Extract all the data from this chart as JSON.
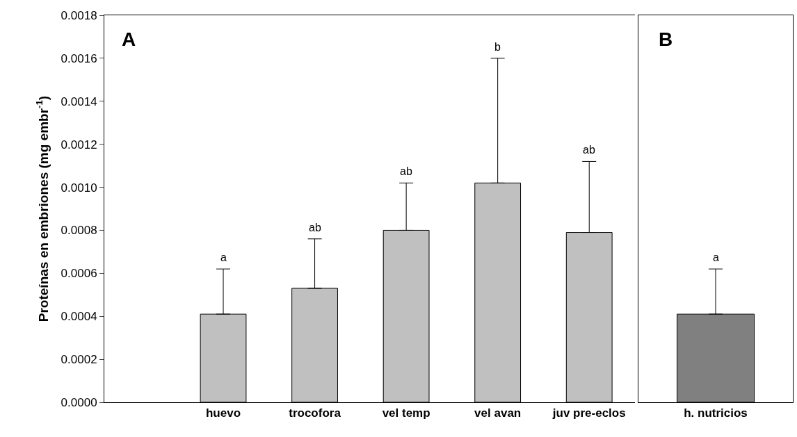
{
  "chart_data": [
    {
      "type": "bar",
      "ylabel": "Proteínas en embriones (mg embr$^{-1}$)",
      "categories": [
        "huevo",
        "trocofora",
        "vel temp",
        "vel avan",
        "juv pre-eclos"
      ],
      "values": [
        0.00041,
        0.00053,
        0.0008,
        0.00102,
        0.00079
      ],
      "color": "#c0c0c0",
      "errors": [
        [
          0.00041,
          0.00062
        ],
        [
          0.00053,
          0.00076
        ],
        [
          0.0008,
          0.00102
        ],
        [
          0.00102,
          0.0016
        ],
        [
          0.00079,
          0.00112
        ]
      ],
      "ylim": [
        0,
        0.0018
      ],
      "yticks": [
        {
          "value": 0,
          "label": "0.0000"
        },
        {
          "value": 0.0002,
          "label": "0.0002"
        },
        {
          "value": 0.0004,
          "label": "0.0004"
        },
        {
          "value": 0.0006,
          "label": "0.0006"
        },
        {
          "value": 0.0008,
          "label": "0.0008"
        },
        {
          "value": 0.001,
          "label": "0.0010"
        },
        {
          "value": 0.0012,
          "label": "0.0012"
        },
        {
          "value": 0.0014,
          "label": "0.0014"
        },
        {
          "value": 0.0016,
          "label": "0.0016"
        },
        {
          "value": 0.0018,
          "label": "0.0018"
        }
      ],
      "annotations": [
        "A",
        {
          "text": "a",
          "x": "huevo",
          "y": 0.00062
        },
        {
          "text": "ab",
          "x": "trocofora",
          "y": 0.00076
        },
        {
          "text": "ab",
          "x": "vel temp",
          "y": 0.00102
        },
        {
          "text": "b",
          "x": "vel avan",
          "y": 0.0016
        },
        {
          "text": "ab",
          "x": "juv pre-eclos",
          "y": 0.00112
        }
      ],
      "grid": false
    },
    {
      "type": "bar",
      "categories": [
        "h. nutricios"
      ],
      "values": [
        0.00041
      ],
      "color": "#808080",
      "errors": [
        [
          0.00041,
          0.00062
        ]
      ],
      "ylim": [
        0,
        0.0018
      ],
      "tick_labels": "x",
      "annotations": [
        "B",
        {
          "text": "a",
          "x": "h. nutricios",
          "y": 0.00062
        }
      ],
      "grid": false
    }
  ]
}
